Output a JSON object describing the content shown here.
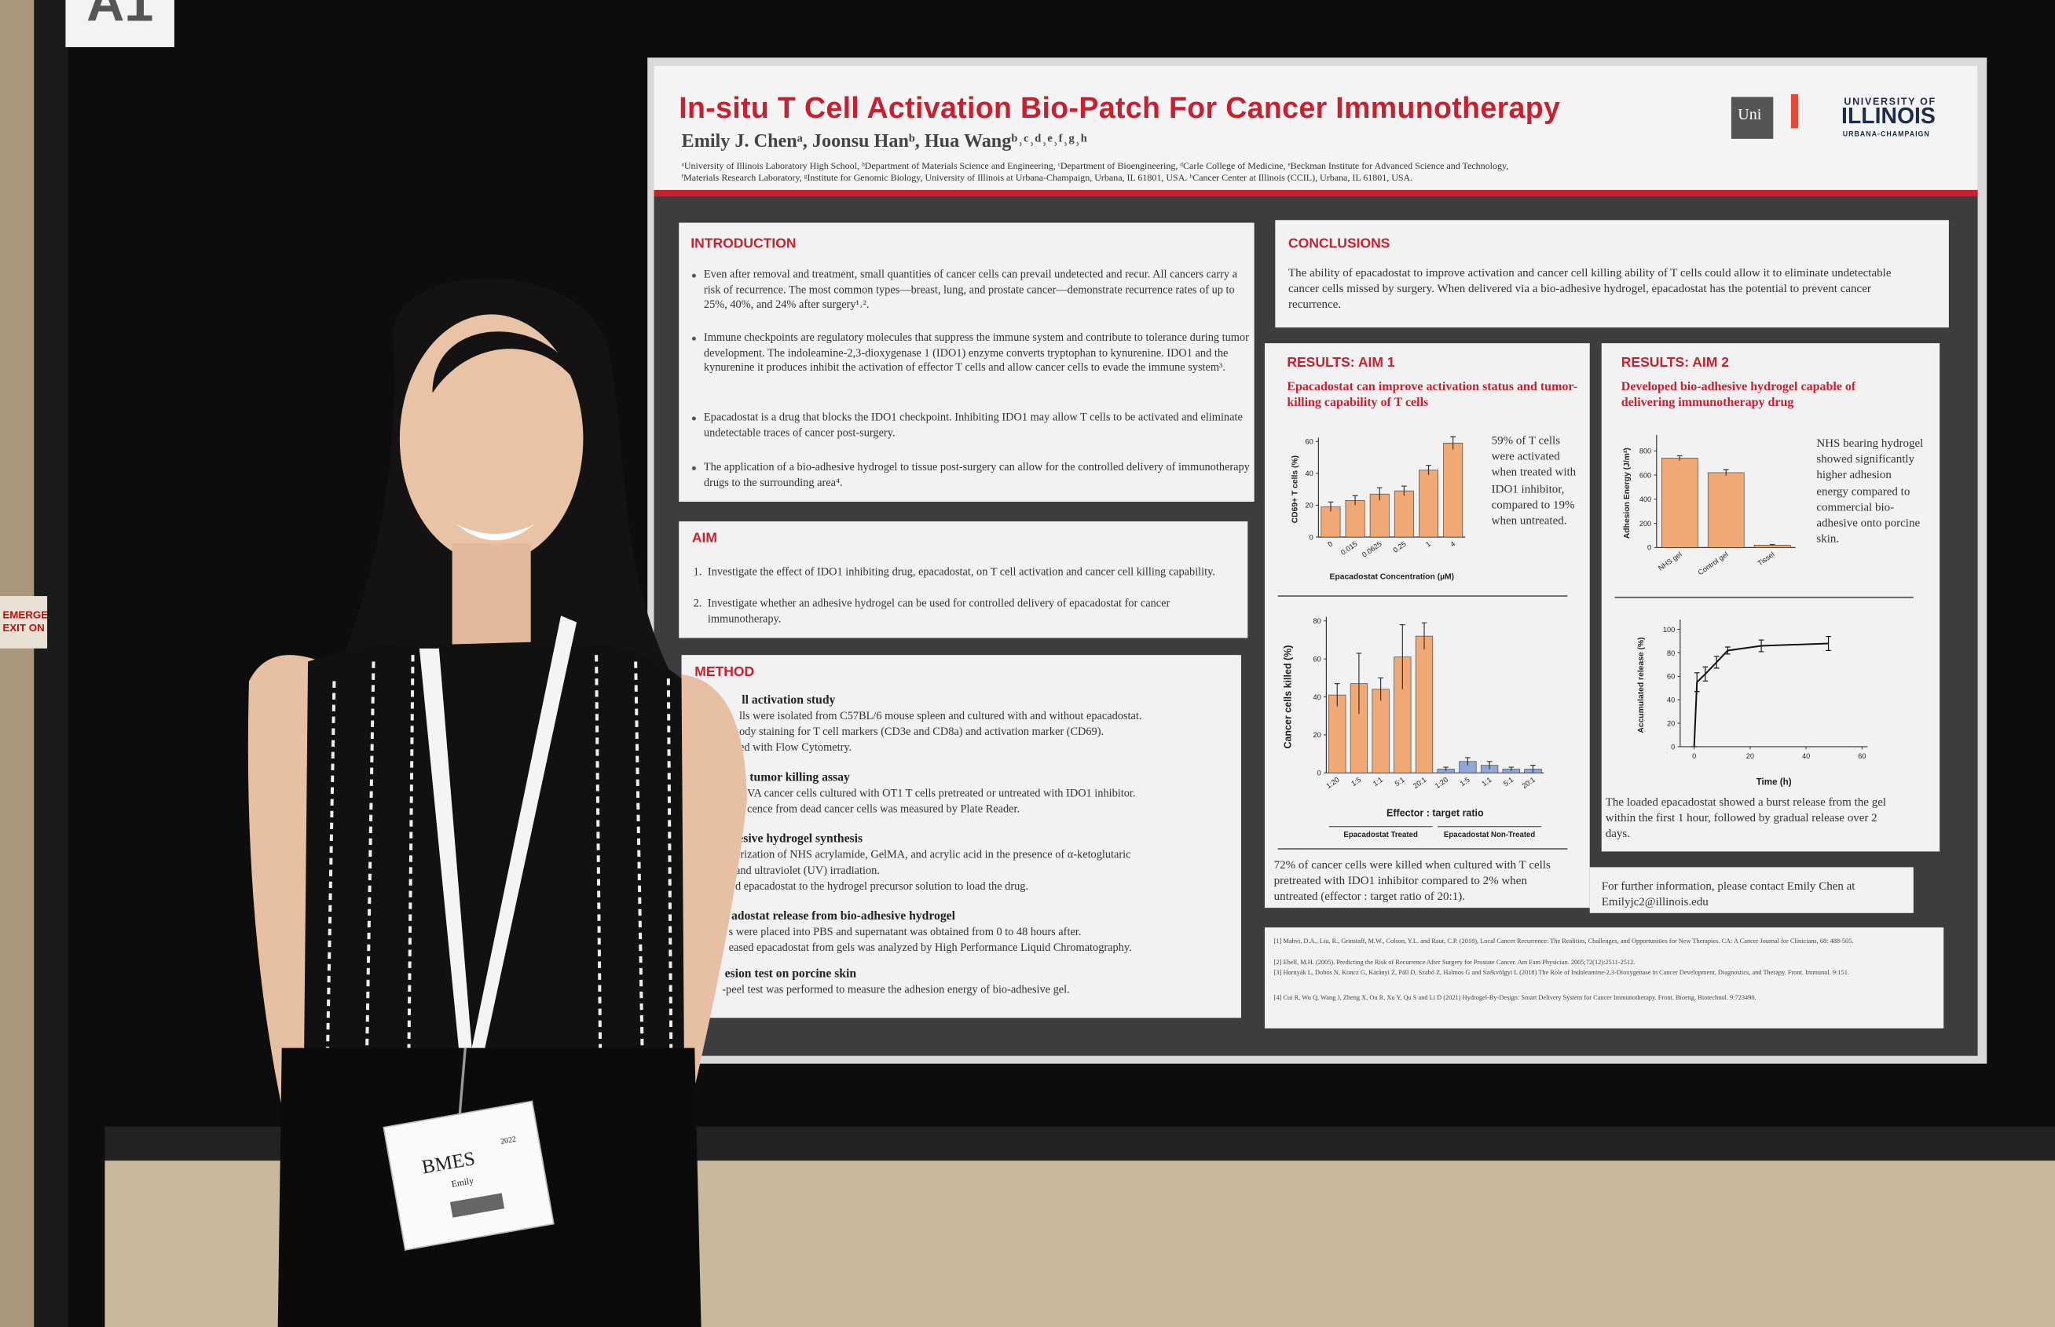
{
  "sign_a1": "A1",
  "exit_sign": [
    "EMERGE",
    "EXIT ON"
  ],
  "poster": {
    "title": "In-situ T Cell Activation Bio-Patch For Cancer Immunotherapy",
    "authors": "Emily J. Chenᵃ, Joonsu Hanᵇ, Hua Wangᵇ˒ᶜ˒ᵈ˒ᵉ˒ᶠ˒ᵍ˒ʰ",
    "affiliations": [
      "ᵃUniversity of Illinois Laboratory High School, ᵇDepartment of Materials Science and Engineering, ᶜDepartment of Bioengineering, ᵈCarle College of Medicine, ᵉBeckman Institute for Advanced Science and Technology,",
      "ᶠMaterials Research Laboratory, ᵍInstitute for Genomic Biology, University of Illinois at Urbana-Champaign, Urbana, IL 61801, USA. ʰCancer Center at Illinois (CCIL), Urbana, IL 61801, USA."
    ],
    "logo": {
      "uni": "Uni",
      "block_i": "I",
      "university_of": "UNIVERSITY OF",
      "illinois": "ILLINOIS",
      "campus": "URBANA-CHAMPAIGN"
    },
    "introduction": {
      "heading": "INTRODUCTION",
      "bullets": [
        "Even after removal and treatment, small quantities of cancer cells can prevail undetected and recur. All cancers carry a risk of recurrence. The most common types—breast, lung, and prostate cancer—demonstrate recurrence rates of up to 25%, 40%, and 24% after surgery¹˒².",
        "Immune checkpoints are regulatory molecules that suppress the immune system and contribute to tolerance during tumor development. The indoleamine-2,3-dioxygenase 1 (IDO1) enzyme converts tryptophan to kynurenine. IDO1 and the kynurenine it produces inhibit the activation of effector T cells and allow cancer cells to evade the immune system³.",
        "Epacadostat is a drug that blocks the IDO1 checkpoint. Inhibiting IDO1 may allow T cells to be activated and eliminate undetectable traces of cancer post-surgery.",
        "The application of a bio-adhesive hydrogel to tissue post-surgery can allow for the controlled delivery of immunotherapy drugs to the surrounding area⁴."
      ]
    },
    "aim": {
      "heading": "AIM",
      "items": [
        {
          "number": "1.",
          "text": "Investigate the effect of IDO1 inhibiting drug, epacadostat, on T cell activation and cancer cell killing capability."
        },
        {
          "number": "2.",
          "text": "Investigate whether an adhesive hydrogel can be used for controlled delivery of epacadostat for cancer immunotherapy."
        }
      ]
    },
    "method": {
      "heading": "METHOD",
      "steps": [
        {
          "title": "ll activation study",
          "lines": [
            "lls were isolated from C57BL/6 mouse spleen and cultured with and without epacadostat.",
            "ody staining for T cell markers (CD3e and CD8a) and activation marker (CD69).",
            "ed with Flow Cytometry."
          ]
        },
        {
          "title": "tumor killing assay",
          "lines": [
            "VA cancer cells cultured with OT1 T cells pretreated or untreated with IDO1 inhibitor.",
            "cence from dead cancer cells was measured by Plate Reader."
          ]
        },
        {
          "title": "esive hydrogel synthesis",
          "lines": [
            "erization of NHS acrylamide, GelMA, and acrylic acid in the presence of α-ketoglutaric",
            "and ultraviolet (UV) irradiation.",
            "d epacadostat to the hydrogel precursor solution to load the drug."
          ]
        },
        {
          "title": "adostat release from bio-adhesive hydrogel",
          "lines": [
            "s were placed into PBS and supernatant was obtained from 0 to 48 hours after.",
            "eased epacadostat from gels was analyzed by High Performance Liquid Chromatography."
          ]
        },
        {
          "title": "esion test on porcine skin",
          "lines": [
            "-peel test was performed to measure the adhesion energy of bio-adhesive gel."
          ]
        }
      ]
    },
    "conclusions": {
      "heading": "CONCLUSIONS",
      "text": "The ability of epacadostat to improve activation and cancer cell killing ability of  T cells could allow it to eliminate undetectable cancer cells missed by surgery. When delivered via a bio-adhesive hydrogel, epacadostat has the potential to prevent cancer recurrence."
    },
    "results_aim1": {
      "heading": "RESULTS: AIM 1",
      "subtitle": "Epacadostat can improve activation status and tumor- killing capability of T cells",
      "activation_chart": {
        "type": "bar",
        "y_label": "CD69+ T cells (%)",
        "x_label": "Epacadostat Concentration (µM)",
        "categories": [
          "0",
          "0.015",
          "0.0625",
          "0.25",
          "1",
          "4"
        ],
        "values": [
          19,
          23,
          27,
          29,
          42,
          59
        ],
        "errors": [
          3,
          3,
          4,
          3,
          3,
          4
        ],
        "color": "#f0a874",
        "ylim": [
          0,
          60
        ],
        "yticks": [
          0,
          20,
          40,
          60
        ]
      },
      "activation_note": "59% of T cells were activated when treated with IDO1 inhibitor, compared to 19% when untreated.",
      "killing_chart": {
        "type": "bar",
        "y_label": "Cancer cells killed (%)",
        "x_label": "Effector : target ratio",
        "categories": [
          "1:20",
          "1:5",
          "1:1",
          "5:1",
          "20:1",
          "1:20",
          "1:5",
          "1:1",
          "5:1",
          "20:1"
        ],
        "series": [
          {
            "name": "Epacadostat Treated",
            "color": "#f0a874",
            "values": [
              41,
              47,
              44,
              61,
              72,
              null,
              null,
              null,
              null,
              null
            ],
            "errors": [
              6,
              16,
              6,
              17,
              7,
              null,
              null,
              null,
              null,
              null
            ]
          },
          {
            "name": "Epacadostat Non-Treated",
            "color": "#8fa8d8",
            "values": [
              null,
              null,
              null,
              null,
              null,
              2,
              6,
              4,
              2,
              2
            ],
            "errors": [
              null,
              null,
              null,
              null,
              null,
              1,
              2,
              2,
              1,
              2
            ]
          }
        ],
        "ylim": [
          0,
          80
        ],
        "yticks": [
          0,
          20,
          40,
          60,
          80
        ]
      },
      "killing_note": "72% of cancer cells were killed when cultured with T cells pretreated with IDO1 inhibitor compared to 2% when untreated (effector : target ratio of 20:1)."
    },
    "results_aim2": {
      "heading": "RESULTS: AIM 2",
      "subtitle": "Developed bio-adhesive hydrogel capable of delivering immunotherapy drug",
      "adhesion_chart": {
        "type": "bar",
        "y_label": "Adhesion Energy (J/m²)",
        "categories": [
          "NHS gel",
          "Control gel",
          "Tissel"
        ],
        "values": [
          740,
          620,
          20
        ],
        "errors": [
          20,
          25,
          5
        ],
        "color": "#f0a874",
        "ylim": [
          0,
          900
        ],
        "yticks": [
          0,
          200,
          400,
          600,
          800
        ]
      },
      "adhesion_note": "NHS bearing hydrogel showed significantly higher adhesion energy compared to commercial bio-adhesive onto porcine skin.",
      "release_chart": {
        "type": "line",
        "y_label": "Accumulated release (%)",
        "x_label": "Time (h)",
        "x": [
          0,
          1,
          4,
          8,
          12,
          24,
          48
        ],
        "values": [
          0,
          55,
          62,
          72,
          82,
          86,
          88
        ],
        "errors": [
          0,
          8,
          6,
          5,
          3,
          5,
          6
        ],
        "color": "#111111",
        "xlim": [
          -5,
          62
        ],
        "xticks": [
          0,
          20,
          40,
          60
        ],
        "ylim": [
          0,
          105
        ],
        "yticks": [
          0,
          20,
          40,
          60,
          80,
          100
        ]
      },
      "release_note": "The loaded epacadostat showed a burst release from the gel within the first 1 hour, followed by gradual release over 2 days."
    },
    "contact": "For further information, please contact Emily Chen at Emilyjc2@illinois.edu",
    "references": [
      "[1] Mahvi, D.A., Liu, R., Grinstaff, M.W., Colson, Y.L. and Raut, C.P. (2018), Local Cancer Recurrence: The Realities, Challenges, and Opportunities for New Therapies. CA: A Cancer Journal for Clinicians, 68: 488-505.",
      "[2] Ebell, M.H. (2005). Predicting the Risk of Recurrence After Surgery for Prostate Cancer. Am Fam Physician. 2005;72(12):2511-2512.",
      "[3] Hornyák L, Dobos N, Koncz G, Karányi Z, Páll D, Szabó Z, Halmos G and Székvölgyi L (2018) The Role of Indoleamine-2,3-Dioxygenase in Cancer Development, Diagnostics, and Therapy. Front. Immunol. 9:151.",
      "[4] Cui R, Wu Q, Wang J, Zheng X, Ou R, Xu Y, Qu S and Li D (2021) Hydrogel-By-Design: Smart Delivery System for Cancer Immunotherapy. Front. Bioeng. Biotechnol. 9:723490."
    ]
  },
  "name_badge": {
    "org": "BMES",
    "year": "2022",
    "name": "Emily"
  }
}
